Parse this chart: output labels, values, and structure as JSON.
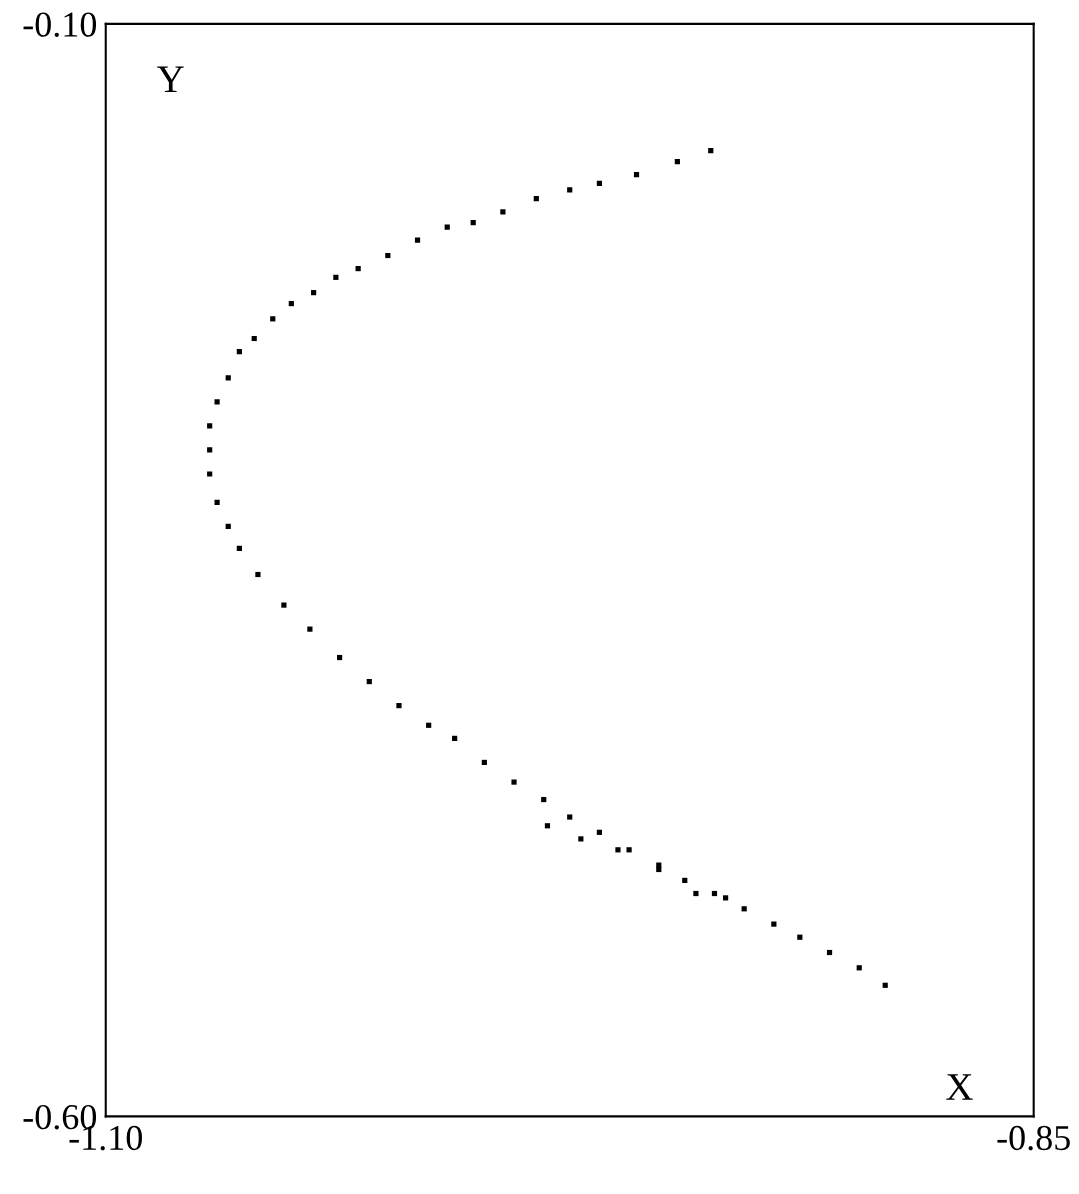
{
  "chart_data": {
    "type": "scatter",
    "xlabel": "X",
    "ylabel": "Y",
    "marker": "square",
    "xlim": [
      -1.1,
      -0.85
    ],
    "ylim": [
      -0.6,
      -0.1
    ],
    "xticks": [
      {
        "value": -1.1,
        "label": "-1.10"
      },
      {
        "value": -0.85,
        "label": "-0.85"
      }
    ],
    "yticks": [
      {
        "value": -0.6,
        "label": "-0.60"
      },
      {
        "value": -0.1,
        "label": "-0.10"
      }
    ],
    "series": [
      {
        "color": "#000000",
        "x": [
          -0.937,
          -0.946,
          -0.957,
          -0.967,
          -0.975,
          -0.984,
          -0.993,
          -1.001,
          -1.008,
          -1.016,
          -1.024,
          -1.032,
          -1.038,
          -1.044,
          -1.05,
          -1.055,
          -1.06,
          -1.064,
          -1.067,
          -1.07,
          -1.072,
          -1.072,
          -1.072,
          -1.07,
          -1.067,
          -1.064,
          -1.059,
          -1.052,
          -1.045,
          -1.037,
          -1.029,
          -1.021,
          -1.013,
          -1.006,
          -0.998,
          -0.99,
          -0.982,
          -0.975,
          -0.967,
          -0.959,
          -0.951,
          -0.944,
          -0.936,
          -0.928,
          -0.92,
          -0.913,
          -0.905,
          -0.897,
          -0.89,
          -0.981,
          -0.972,
          -0.962,
          -0.951,
          -0.941,
          -0.933
        ],
        "values": [
          -0.158,
          -0.163,
          -0.169,
          -0.173,
          -0.176,
          -0.18,
          -0.186,
          -0.191,
          -0.193,
          -0.199,
          -0.206,
          -0.212,
          -0.216,
          -0.223,
          -0.228,
          -0.235,
          -0.244,
          -0.25,
          -0.262,
          -0.273,
          -0.284,
          -0.295,
          -0.306,
          -0.319,
          -0.33,
          -0.34,
          -0.352,
          -0.366,
          -0.377,
          -0.39,
          -0.401,
          -0.412,
          -0.421,
          -0.427,
          -0.438,
          -0.447,
          -0.455,
          -0.463,
          -0.47,
          -0.478,
          -0.485,
          -0.492,
          -0.498,
          -0.505,
          -0.512,
          -0.518,
          -0.525,
          -0.532,
          -0.54,
          -0.467,
          -0.473,
          -0.478,
          -0.487,
          -0.498,
          -0.5
        ]
      }
    ]
  }
}
